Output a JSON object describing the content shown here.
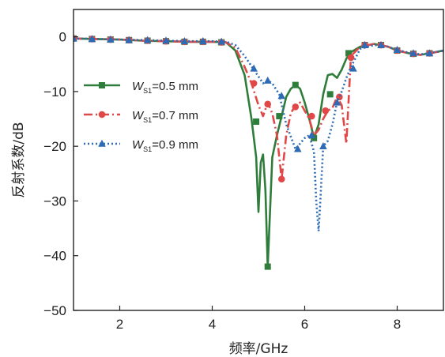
{
  "chart_data": {
    "type": "line",
    "title": "",
    "xlabel": "频率/GHz",
    "ylabel": "反射系数/dB",
    "xlim": [
      1,
      9
    ],
    "ylim": [
      -50,
      5
    ],
    "xticks": [
      2,
      4,
      6,
      8
    ],
    "yticks": [
      0,
      -10,
      -20,
      -30,
      -40,
      -50
    ],
    "xtick_labels": [
      "2",
      "4",
      "6",
      "8"
    ],
    "ytick_labels": [
      "0",
      "−10",
      "−20",
      "−30",
      "−40",
      "−50"
    ],
    "grid": false,
    "legend_position": "left",
    "series": [
      {
        "name_prefix": "W",
        "name_sub": "S1",
        "name_suffix": "=0.5 mm",
        "color": "#2e7d3a",
        "dash": "solid",
        "marker": "square",
        "x": [
          1.0,
          1.5,
          2.0,
          2.5,
          3.0,
          3.5,
          4.0,
          4.3,
          4.5,
          4.7,
          4.85,
          4.95,
          5.0,
          5.05,
          5.1,
          5.15,
          5.2,
          5.3,
          5.4,
          5.5,
          5.6,
          5.7,
          5.8,
          5.9,
          6.0,
          6.1,
          6.2,
          6.3,
          6.4,
          6.5,
          6.6,
          6.7,
          6.8,
          6.9,
          7.0,
          7.2,
          7.5,
          7.8,
          8.0,
          8.3,
          8.5,
          8.7,
          9.0
        ],
        "y": [
          -0.3,
          -0.4,
          -0.5,
          -0.7,
          -0.8,
          -0.9,
          -0.9,
          -1.0,
          -2.5,
          -7.0,
          -15.0,
          -22.0,
          -32.0,
          -23.0,
          -21.5,
          -28.0,
          -42.0,
          -22.0,
          -18.0,
          -14.5,
          -11.0,
          -9.5,
          -8.8,
          -9.5,
          -12.0,
          -15.0,
          -18.5,
          -16.0,
          -10.5,
          -7.0,
          -6.8,
          -7.5,
          -6.0,
          -4.0,
          -2.8,
          -1.8,
          -1.3,
          -1.8,
          -2.5,
          -3.1,
          -3.3,
          -3.0,
          -2.5
        ],
        "marker_x": [
          1.0,
          1.4,
          1.8,
          2.2,
          2.6,
          3.0,
          3.4,
          3.8,
          4.2,
          4.95,
          5.2,
          5.45,
          5.8,
          6.2,
          6.55,
          6.95,
          7.3,
          7.65,
          8.0,
          8.35,
          8.7
        ],
        "marker_y": [
          -0.3,
          -0.4,
          -0.5,
          -0.6,
          -0.7,
          -0.8,
          -0.9,
          -0.9,
          -1.0,
          -15.5,
          -42.0,
          -14.5,
          -8.8,
          -18.5,
          -10.5,
          -3.0,
          -1.5,
          -1.5,
          -2.5,
          -3.1,
          -3.0
        ]
      },
      {
        "name_prefix": "W",
        "name_sub": "S1",
        "name_suffix": "=0.7 mm",
        "color": "#e04848",
        "dash": "dashdot",
        "marker": "circle",
        "x": [
          1.0,
          1.5,
          2.0,
          2.5,
          3.0,
          3.5,
          4.0,
          4.3,
          4.5,
          4.7,
          4.85,
          5.0,
          5.1,
          5.2,
          5.3,
          5.4,
          5.5,
          5.6,
          5.7,
          5.8,
          5.9,
          6.0,
          6.1,
          6.2,
          6.3,
          6.4,
          6.5,
          6.6,
          6.7,
          6.8,
          6.9,
          7.0,
          7.2,
          7.5,
          7.8,
          8.0,
          8.3,
          8.5,
          8.7,
          9.0
        ],
        "y": [
          -0.3,
          -0.4,
          -0.5,
          -0.7,
          -0.8,
          -0.9,
          -0.9,
          -1.0,
          -2.0,
          -5.5,
          -8.5,
          -12.5,
          -14.5,
          -12.0,
          -14.0,
          -18.0,
          -26.0,
          -18.0,
          -14.0,
          -12.5,
          -12.0,
          -13.5,
          -15.0,
          -18.0,
          -17.0,
          -15.0,
          -13.5,
          -13.0,
          -11.0,
          -12.5,
          -19.5,
          -3.5,
          -1.8,
          -1.3,
          -1.8,
          -2.5,
          -3.1,
          -3.3,
          -3.0,
          -2.6
        ],
        "marker_x": [
          1.0,
          1.4,
          1.8,
          2.2,
          2.6,
          3.0,
          3.4,
          3.8,
          4.2,
          4.9,
          5.2,
          5.5,
          5.8,
          6.15,
          6.45,
          6.75,
          7.0,
          7.3,
          7.65,
          8.0,
          8.35,
          8.7
        ],
        "marker_y": [
          -0.3,
          -0.4,
          -0.5,
          -0.6,
          -0.7,
          -0.8,
          -0.9,
          -0.9,
          -1.0,
          -8.5,
          -12.3,
          -26.0,
          -12.8,
          -14.5,
          -13.5,
          -11.0,
          -3.8,
          -1.5,
          -1.5,
          -2.5,
          -3.1,
          -3.0
        ]
      },
      {
        "name_prefix": "W",
        "name_sub": "S1",
        "name_suffix": "=0.9 mm",
        "color": "#2d6bb4",
        "dash": "dotted",
        "marker": "triangle",
        "x": [
          1.0,
          1.5,
          2.0,
          2.5,
          3.0,
          3.5,
          4.0,
          4.3,
          4.5,
          4.7,
          4.9,
          5.1,
          5.2,
          5.3,
          5.45,
          5.6,
          5.8,
          5.9,
          6.0,
          6.1,
          6.2,
          6.25,
          6.3,
          6.35,
          6.4,
          6.5,
          6.6,
          6.7,
          6.8,
          6.9,
          7.0,
          7.2,
          7.5,
          7.8,
          8.0,
          8.3,
          8.5,
          8.7,
          9.0
        ],
        "y": [
          -0.3,
          -0.4,
          -0.5,
          -0.6,
          -0.7,
          -0.8,
          -0.8,
          -0.9,
          -1.5,
          -3.5,
          -6.0,
          -8.5,
          -8.0,
          -8.5,
          -10.5,
          -16.0,
          -20.5,
          -19.5,
          -18.5,
          -18.0,
          -21.0,
          -30.0,
          -35.5,
          -28.0,
          -20.0,
          -19.0,
          -16.0,
          -12.0,
          -10.0,
          -7.5,
          -5.5,
          -2.2,
          -1.5,
          -1.8,
          -2.4,
          -3.0,
          -3.2,
          -3.0,
          -2.5
        ],
        "marker_x": [
          1.0,
          1.4,
          1.8,
          2.2,
          2.6,
          3.0,
          3.4,
          3.8,
          4.2,
          4.9,
          5.2,
          5.5,
          5.85,
          6.15,
          6.4,
          6.7,
          7.05,
          7.3,
          7.65,
          8.0,
          8.35,
          8.7
        ],
        "marker_y": [
          -0.3,
          -0.4,
          -0.5,
          -0.6,
          -0.6,
          -0.7,
          -0.8,
          -0.8,
          -0.9,
          -5.8,
          -8.0,
          -10.8,
          -20.5,
          -18.0,
          -20.0,
          -12.0,
          -5.8,
          -1.5,
          -1.5,
          -2.4,
          -3.0,
          -3.0
        ]
      }
    ]
  }
}
